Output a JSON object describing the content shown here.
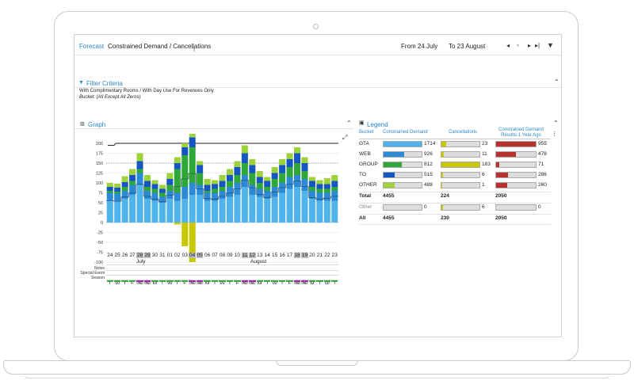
{
  "header": {
    "forecast_tab": "Forecast",
    "title": "Constrained Demand / Cancellations",
    "from_label": "From 24 July",
    "to_label": "To 23 August"
  },
  "filter": {
    "title": "Filter Criteria",
    "line1": "With Complimentary Rooms / With Day Use For Revenues Only",
    "line2": "Bucket: (All Except All Zeros)"
  },
  "graph_panel": {
    "title": "Graph"
  },
  "legend_panel": {
    "title": "Legend",
    "columns": [
      "Bucket",
      "Constrained Demand",
      "Cancellations",
      "Constrained Demand Results 1 Year Ago"
    ],
    "rows": [
      {
        "bucket": "OTA",
        "demand": "1714",
        "cancel": "23",
        "year_ago": "955",
        "color": "#4fb3ec"
      },
      {
        "bucket": "WEB",
        "demand": "926",
        "cancel": "11",
        "year_ago": "478",
        "color": "#2a8ad6"
      },
      {
        "bucket": "GROUP",
        "demand": "812",
        "cancel": "183",
        "year_ago": "71",
        "color": "#2fa83a"
      },
      {
        "bucket": "TO",
        "demand": "515",
        "cancel": "6",
        "year_ago": "286",
        "color": "#1555c4"
      },
      {
        "bucket": "OTHER",
        "demand": "488",
        "cancel": "1",
        "year_ago": "260",
        "color": "#9ed23a"
      }
    ],
    "total": {
      "label": "Total",
      "demand": "4455",
      "cancel": "224",
      "year_ago": "2050"
    },
    "other": {
      "label": "Other",
      "demand": "0",
      "cancel": "6",
      "year_ago": "0"
    },
    "all": {
      "label": "All",
      "demand": "4455",
      "cancel": "230",
      "year_ago": "2050"
    }
  },
  "colors": {
    "ota": "#4fb3ec",
    "web": "#2a8ad6",
    "group": "#2fa83a",
    "to": "#1555c4",
    "other": "#9ed23a",
    "cancel": "#c9c800",
    "year_ago": "#b8312f",
    "accent": "#2c86c9"
  },
  "calendar": {
    "weekdays": [
      "T",
      "W",
      "T",
      "F",
      "S",
      "S",
      "M",
      "T",
      "W",
      "T",
      "F",
      "S",
      "S",
      "M",
      "T",
      "W",
      "T",
      "F",
      "S",
      "S",
      "M",
      "T",
      "W",
      "T",
      "F",
      "S",
      "S",
      "M",
      "T",
      "W",
      "T"
    ],
    "days": [
      "24",
      "25",
      "26",
      "27",
      "28",
      "29",
      "30",
      "31",
      "01",
      "02",
      "03",
      "04",
      "05",
      "06",
      "07",
      "08",
      "09",
      "10",
      "11",
      "12",
      "13",
      "14",
      "15",
      "16",
      "17",
      "18",
      "19",
      "20",
      "21",
      "22",
      "23"
    ],
    "month1": "July",
    "month2": "August",
    "row_labels": [
      "Notes",
      "Special Event",
      "Season"
    ]
  },
  "chart_data": {
    "type": "bar",
    "y_ticks": [
      "200",
      "175",
      "150",
      "125",
      "100",
      "75",
      "50",
      "25",
      "0",
      "-25",
      "-50",
      "-75",
      "-100"
    ],
    "ylim": [
      -100,
      200
    ],
    "categories": [
      "24",
      "25",
      "26",
      "27",
      "28",
      "29",
      "30",
      "31",
      "01",
      "02",
      "03",
      "04",
      "05",
      "06",
      "07",
      "08",
      "09",
      "10",
      "11",
      "12",
      "13",
      "14",
      "15",
      "16",
      "17",
      "18",
      "19",
      "20",
      "21",
      "22",
      "23"
    ],
    "series": [
      {
        "name": "OTA",
        "values": [
          55,
          55,
          60,
          70,
          95,
          60,
          55,
          50,
          60,
          55,
          60,
          70,
          70,
          55,
          55,
          60,
          65,
          70,
          90,
          70,
          65,
          60,
          65,
          75,
          85,
          90,
          80,
          60,
          55,
          55,
          55
        ]
      },
      {
        "name": "WEB",
        "values": [
          20,
          18,
          20,
          25,
          30,
          20,
          20,
          15,
          20,
          20,
          30,
          30,
          25,
          20,
          20,
          20,
          25,
          30,
          30,
          25,
          20,
          20,
          25,
          25,
          30,
          30,
          30,
          20,
          20,
          20,
          25
        ]
      },
      {
        "name": "GROUP",
        "values": [
          5,
          5,
          10,
          10,
          10,
          10,
          10,
          10,
          15,
          60,
          80,
          90,
          30,
          5,
          10,
          10,
          15,
          20,
          30,
          30,
          15,
          10,
          20,
          25,
          25,
          30,
          20,
          10,
          10,
          10,
          10
        ]
      },
      {
        "name": "TO",
        "values": [
          10,
          10,
          12,
          15,
          20,
          15,
          12,
          10,
          15,
          15,
          20,
          25,
          20,
          15,
          12,
          15,
          15,
          20,
          25,
          20,
          15,
          15,
          15,
          20,
          20,
          25,
          20,
          15,
          12,
          12,
          15
        ]
      },
      {
        "name": "OTHER",
        "values": [
          10,
          10,
          15,
          15,
          20,
          15,
          10,
          10,
          15,
          15,
          10,
          10,
          10,
          15,
          10,
          15,
          15,
          15,
          20,
          15,
          15,
          10,
          15,
          15,
          15,
          15,
          15,
          10,
          10,
          15,
          15
        ]
      },
      {
        "name": "Cancellations",
        "values": [
          0,
          0,
          0,
          0,
          0,
          0,
          0,
          0,
          0,
          -5,
          -60,
          -100,
          0,
          0,
          0,
          0,
          0,
          0,
          0,
          0,
          0,
          0,
          0,
          0,
          0,
          0,
          0,
          0,
          0,
          0,
          0
        ]
      }
    ]
  }
}
